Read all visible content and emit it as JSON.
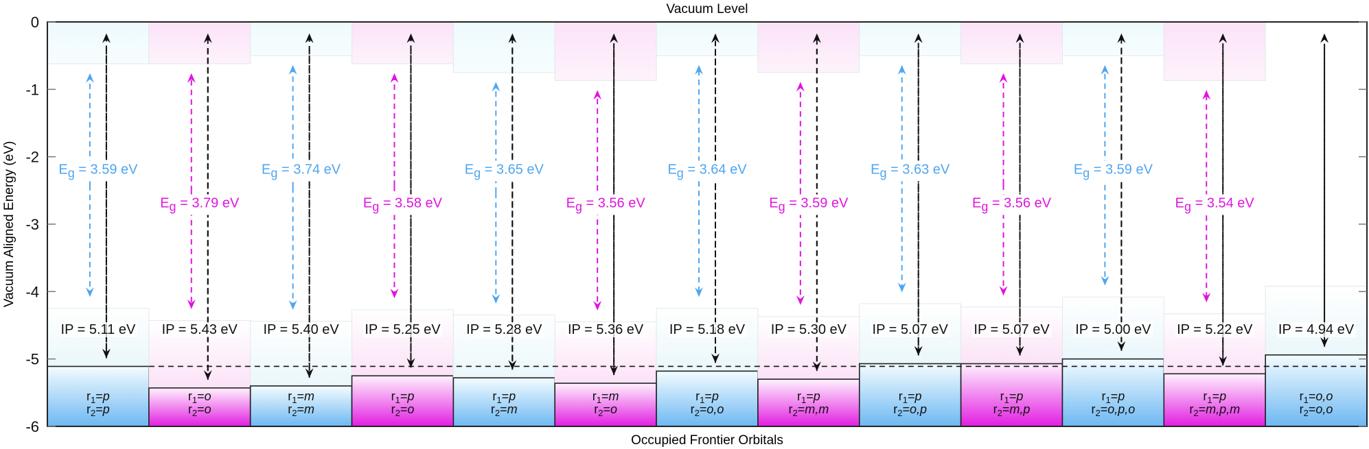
{
  "chart_data": {
    "type": "diagram",
    "top_label": "Vacuum Level",
    "bottom_label": "Occupied Frontier Orbitals",
    "ylabel": "Vacuum Aligned Energy (eV)",
    "ylim": [
      -6,
      0
    ],
    "yticks": [
      0,
      -1,
      -2,
      -3,
      -4,
      -5,
      -6
    ],
    "reference_line_eV": -5.11,
    "colors": {
      "blue": "#4fa6ef",
      "magenta": "#e014e0",
      "blue_fill": "#6db8f2",
      "magenta_fill": "#e21ee2"
    },
    "columns": [
      {
        "r1": "p",
        "r2": "p",
        "ip": 5.11,
        "eg": 3.59,
        "color": "blue",
        "upper_level": -0.62,
        "lower_level": -4.25
      },
      {
        "r1": "o",
        "r2": "o",
        "ip": 5.43,
        "eg": 3.79,
        "color": "magenta",
        "upper_level": -0.62,
        "lower_level": -4.43
      },
      {
        "r1": "m",
        "r2": "m",
        "ip": 5.4,
        "eg": 3.74,
        "color": "blue",
        "upper_level": -0.5,
        "lower_level": -4.44
      },
      {
        "r1": "p",
        "r2": "o",
        "ip": 5.25,
        "eg": 3.58,
        "color": "magenta",
        "upper_level": -0.62,
        "lower_level": -4.27
      },
      {
        "r1": "p",
        "r2": "m",
        "ip": 5.28,
        "eg": 3.65,
        "color": "blue",
        "upper_level": -0.75,
        "lower_level": -4.35
      },
      {
        "r1": "m",
        "r2": "o",
        "ip": 5.36,
        "eg": 3.56,
        "color": "magenta",
        "upper_level": -0.87,
        "lower_level": -4.45
      },
      {
        "r1": "p",
        "r2": "o,o",
        "ip": 5.18,
        "eg": 3.64,
        "color": "blue",
        "upper_level": -0.5,
        "lower_level": -4.25
      },
      {
        "r1": "p",
        "r2": "m,m",
        "ip": 5.3,
        "eg": 3.59,
        "color": "magenta",
        "upper_level": -0.75,
        "lower_level": -4.37
      },
      {
        "r1": "p",
        "r2": "o,p",
        "ip": 5.07,
        "eg": 3.63,
        "color": "blue",
        "upper_level": -0.5,
        "lower_level": -4.18
      },
      {
        "r1": "p",
        "r2": "m,p",
        "ip": 5.07,
        "eg": 3.56,
        "color": "magenta",
        "upper_level": -0.62,
        "lower_level": -4.23
      },
      {
        "r1": "p",
        "r2": "o,p,o",
        "ip": 5.0,
        "eg": 3.59,
        "color": "blue",
        "upper_level": -0.5,
        "lower_level": -4.08
      },
      {
        "r1": "p",
        "r2": "m,p,m",
        "ip": 5.22,
        "eg": 3.54,
        "color": "magenta",
        "upper_level": -0.87,
        "lower_level": -4.33
      },
      {
        "r1": "o,o",
        "r2": "o,o",
        "ip": 4.94,
        "eg": null,
        "color": "blue",
        "upper_level": null,
        "lower_level": -3.92
      }
    ]
  }
}
